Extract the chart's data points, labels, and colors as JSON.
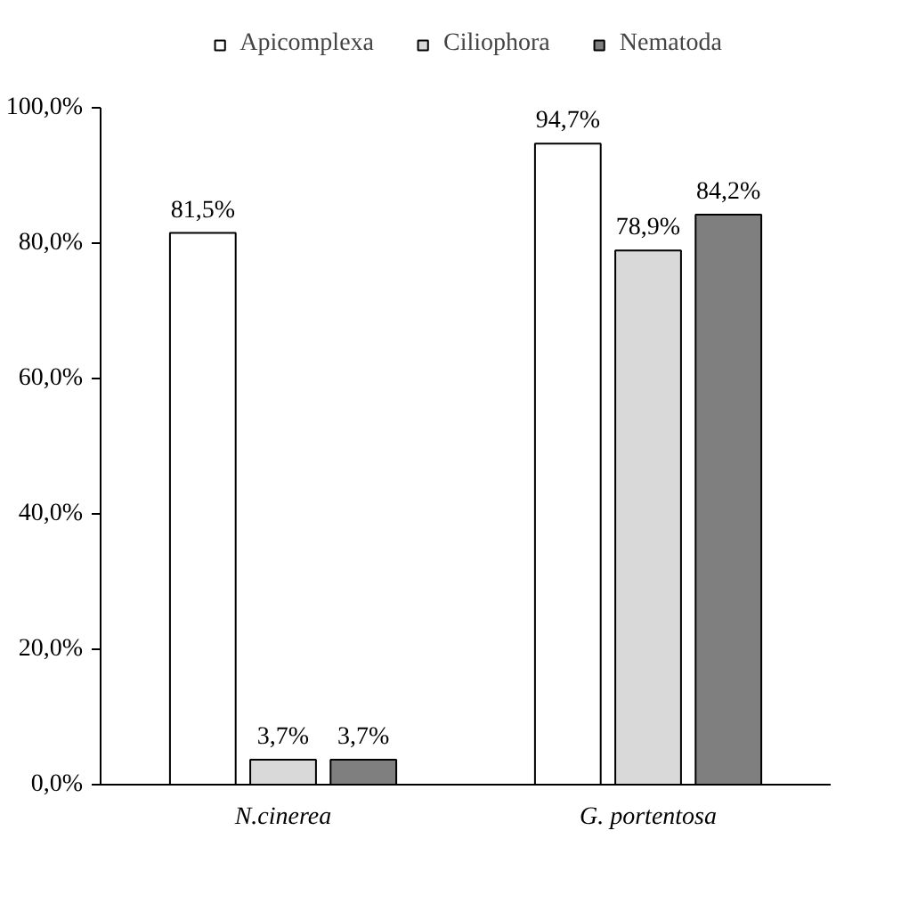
{
  "chart_data": {
    "type": "bar",
    "categories": [
      "N.cinerea",
      "G. portentosa"
    ],
    "series": [
      {
        "name": "Apicomplexa",
        "color": "#ffffff",
        "values": [
          81.5,
          94.7
        ],
        "value_labels": [
          "81,5%",
          "94,7%"
        ]
      },
      {
        "name": "Ciliophora",
        "color": "#d9d9d9",
        "values": [
          3.7,
          78.9
        ],
        "value_labels": [
          "3,7%",
          "78,9%"
        ]
      },
      {
        "name": "Nematoda",
        "color": "#7f7f7f",
        "values": [
          3.7,
          84.2
        ],
        "value_labels": [
          "3,7%",
          "84,2%"
        ]
      }
    ],
    "ylim": [
      0,
      100
    ],
    "yticks": [
      {
        "value": 0,
        "label": "0,0%"
      },
      {
        "value": 20,
        "label": "20,0%"
      },
      {
        "value": 40,
        "label": "40,0%"
      },
      {
        "value": 60,
        "label": "60,0%"
      },
      {
        "value": 80,
        "label": "80,0%"
      },
      {
        "value": 100,
        "label": "100,0%"
      }
    ],
    "grid": false,
    "legend": "top"
  }
}
